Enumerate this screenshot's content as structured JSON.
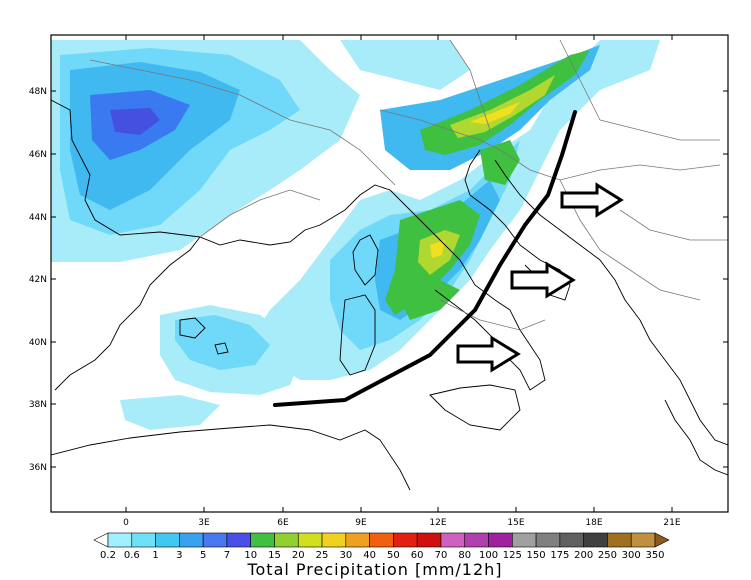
{
  "map": {
    "lat_labels": [
      "48N",
      "46N",
      "44N",
      "42N",
      "40N",
      "38N",
      "36N"
    ],
    "lon_labels": [
      "0",
      "3E",
      "6E",
      "9E",
      "12E",
      "15E",
      "18E",
      "21E"
    ],
    "annotation": {
      "front_line_color": "#000000",
      "arrow_count": 3
    }
  },
  "colorbar": {
    "title": "Total Precipitation [mm/12h]",
    "levels": [
      "0.2",
      "0.6",
      "1",
      "3",
      "5",
      "7",
      "10",
      "15",
      "20",
      "25",
      "30",
      "40",
      "50",
      "60",
      "70",
      "80",
      "100",
      "125",
      "150",
      "175",
      "200",
      "250",
      "300",
      "350"
    ],
    "colors": [
      "#ffffff",
      "#a0f0ff",
      "#70e0f8",
      "#40c8f0",
      "#3aa0f0",
      "#4a78f0",
      "#4850e8",
      "#40c040",
      "#90d030",
      "#d0e020",
      "#f0d020",
      "#f0a020",
      "#f06010",
      "#e02010",
      "#d01010",
      "#d060c0",
      "#b040b0",
      "#a020a0",
      "#a0a0a0",
      "#808080",
      "#606060",
      "#404040",
      "#a07020",
      "#c09040",
      "#8a5a20"
    ]
  },
  "precip_palette": {
    "light": "#a8ecfa",
    "cyan": "#70d8f8",
    "mid": "#40b8f0",
    "blue": "#3a7af0",
    "dark_blue": "#4450e0",
    "green": "#40c040",
    "yellow_green": "#b0d830",
    "yellow": "#f0e020"
  }
}
